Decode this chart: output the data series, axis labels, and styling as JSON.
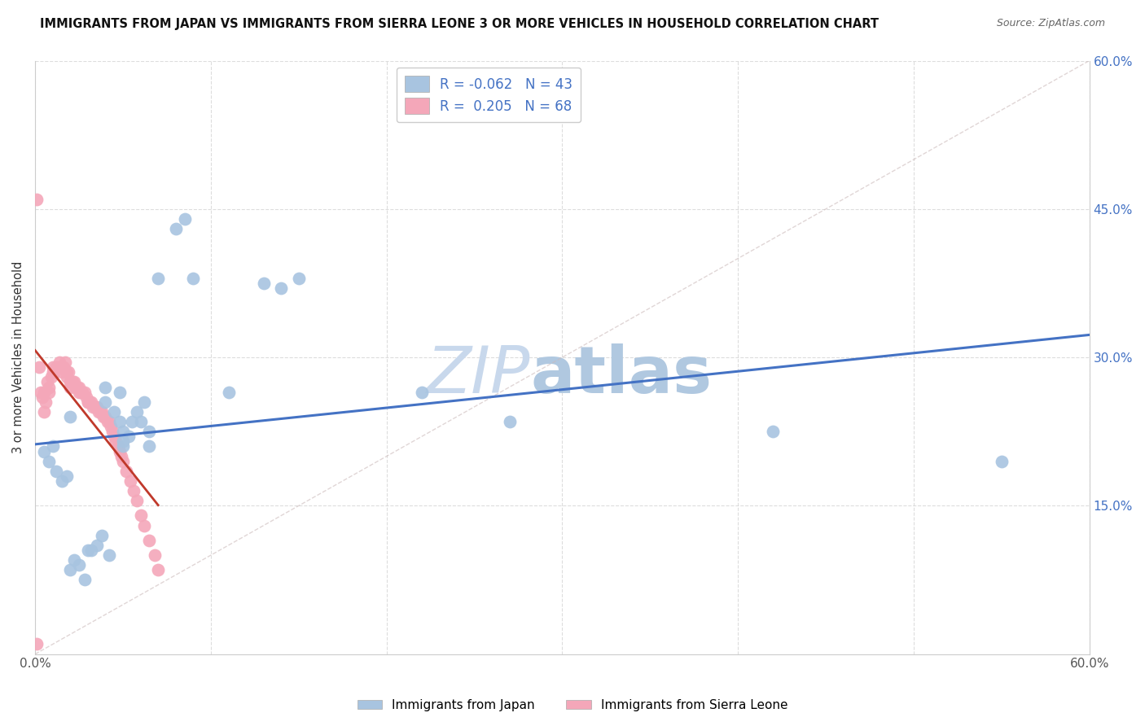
{
  "title": "IMMIGRANTS FROM JAPAN VS IMMIGRANTS FROM SIERRA LEONE 3 OR MORE VEHICLES IN HOUSEHOLD CORRELATION CHART",
  "source": "Source: ZipAtlas.com",
  "ylabel": "3 or more Vehicles in Household",
  "xmin": 0.0,
  "xmax": 0.6,
  "ymin": 0.0,
  "ymax": 0.6,
  "legend_japan": "Immigrants from Japan",
  "legend_sierra": "Immigrants from Sierra Leone",
  "R_japan": "-0.062",
  "N_japan": "43",
  "R_sierra": "0.205",
  "N_sierra": "68",
  "color_japan": "#a8c4e0",
  "color_sierra": "#f4a7b9",
  "color_japan_line": "#4472c4",
  "color_sierra_line": "#c0392b",
  "watermark_zip": "ZIP",
  "watermark_atlas": "atlas",
  "watermark_color_zip": "#c8d8ec",
  "watermark_color_atlas": "#b8cce0",
  "japan_x": [
    0.02,
    0.04,
    0.04,
    0.045,
    0.048,
    0.048,
    0.05,
    0.05,
    0.05,
    0.053,
    0.055,
    0.058,
    0.06,
    0.062,
    0.065,
    0.065,
    0.07,
    0.08,
    0.085,
    0.09,
    0.11,
    0.13,
    0.14,
    0.15,
    0.22,
    0.27,
    0.42,
    0.55,
    0.005,
    0.008,
    0.01,
    0.012,
    0.015,
    0.018,
    0.02,
    0.022,
    0.025,
    0.028,
    0.03,
    0.032,
    0.035,
    0.038,
    0.042
  ],
  "japan_y": [
    0.24,
    0.255,
    0.27,
    0.245,
    0.235,
    0.265,
    0.21,
    0.215,
    0.225,
    0.22,
    0.235,
    0.245,
    0.235,
    0.255,
    0.21,
    0.225,
    0.38,
    0.43,
    0.44,
    0.38,
    0.265,
    0.375,
    0.37,
    0.38,
    0.265,
    0.235,
    0.225,
    0.195,
    0.205,
    0.195,
    0.21,
    0.185,
    0.175,
    0.18,
    0.085,
    0.095,
    0.09,
    0.075,
    0.105,
    0.105,
    0.11,
    0.12,
    0.1
  ],
  "sierra_x": [
    0.001,
    0.002,
    0.003,
    0.004,
    0.005,
    0.005,
    0.006,
    0.007,
    0.008,
    0.008,
    0.009,
    0.01,
    0.01,
    0.011,
    0.012,
    0.013,
    0.014,
    0.015,
    0.015,
    0.016,
    0.017,
    0.018,
    0.018,
    0.019,
    0.02,
    0.02,
    0.021,
    0.022,
    0.023,
    0.024,
    0.025,
    0.025,
    0.026,
    0.027,
    0.028,
    0.029,
    0.03,
    0.03,
    0.031,
    0.032,
    0.033,
    0.034,
    0.035,
    0.036,
    0.037,
    0.038,
    0.039,
    0.04,
    0.041,
    0.042,
    0.043,
    0.044,
    0.045,
    0.046,
    0.047,
    0.048,
    0.049,
    0.05,
    0.052,
    0.054,
    0.056,
    0.058,
    0.06,
    0.062,
    0.065,
    0.068,
    0.07,
    0.001
  ],
  "sierra_y": [
    0.46,
    0.29,
    0.265,
    0.26,
    0.265,
    0.245,
    0.255,
    0.275,
    0.265,
    0.27,
    0.28,
    0.29,
    0.285,
    0.285,
    0.29,
    0.29,
    0.295,
    0.29,
    0.285,
    0.29,
    0.295,
    0.28,
    0.285,
    0.285,
    0.27,
    0.275,
    0.275,
    0.275,
    0.27,
    0.27,
    0.265,
    0.27,
    0.265,
    0.265,
    0.265,
    0.26,
    0.255,
    0.255,
    0.255,
    0.255,
    0.25,
    0.25,
    0.25,
    0.245,
    0.245,
    0.245,
    0.24,
    0.24,
    0.235,
    0.235,
    0.23,
    0.225,
    0.22,
    0.215,
    0.21,
    0.205,
    0.2,
    0.195,
    0.185,
    0.175,
    0.165,
    0.155,
    0.14,
    0.13,
    0.115,
    0.1,
    0.085,
    0.01
  ]
}
